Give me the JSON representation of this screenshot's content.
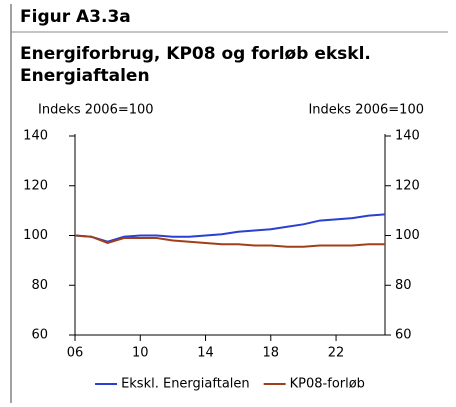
{
  "chart_data": {
    "type": "line",
    "figure_label": "Figur A3.3a",
    "title_lines": [
      "Energiforbrug, KP08 og forløb ekskl.",
      "Energiaftalen"
    ],
    "ylabel": "Indeks 2006=100",
    "y2label": "Indeks 2006=100",
    "x": [
      2006,
      2007,
      2008,
      2009,
      2010,
      2011,
      2012,
      2013,
      2014,
      2015,
      2016,
      2017,
      2018,
      2019,
      2020,
      2021,
      2022,
      2023,
      2024,
      2025
    ],
    "series": [
      {
        "name": "Ekskl. Energiaftalen",
        "color": "#2b3fd1",
        "values": [
          100,
          99.5,
          97.5,
          99.5,
          100,
          100,
          99.5,
          99.5,
          100,
          100.5,
          101.5,
          102,
          102.5,
          103.5,
          104.5,
          106,
          106.5,
          107,
          108,
          108.5
        ]
      },
      {
        "name": "KP08-forløb",
        "color": "#a0401a",
        "values": [
          100,
          99.5,
          97,
          99,
          99,
          99,
          98,
          97.5,
          97,
          96.5,
          96.5,
          96,
          96,
          95.5,
          95.5,
          96,
          96,
          96,
          96.5,
          96.5
        ]
      }
    ],
    "xlim": [
      2006,
      2025
    ],
    "xticks": [
      {
        "value": 2006,
        "label": "06"
      },
      {
        "value": 2010,
        "label": "10"
      },
      {
        "value": 2014,
        "label": "14"
      },
      {
        "value": 2018,
        "label": "18"
      },
      {
        "value": 2022,
        "label": "22"
      }
    ],
    "ylim": [
      60,
      140
    ],
    "yticks": [
      60,
      80,
      100,
      120,
      140
    ],
    "y2lim": [
      60,
      140
    ],
    "y2ticks": [
      60,
      80,
      100,
      120,
      140
    ],
    "legend": "bottom"
  }
}
